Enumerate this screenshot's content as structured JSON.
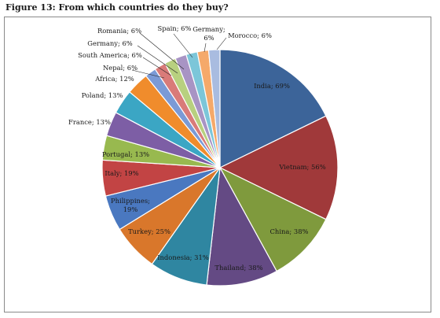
{
  "figure_title": "Figure 13:  From which countries do they buy?",
  "chart_data": {
    "type": "pie",
    "title": "",
    "slices": [
      {
        "label": "India",
        "value": 69,
        "color": "#3c6499"
      },
      {
        "label": "Vietnam",
        "value": 56,
        "color": "#a0393a"
      },
      {
        "label": "China",
        "value": 38,
        "color": "#7f9a3d"
      },
      {
        "label": "Thailand",
        "value": 38,
        "color": "#644a84"
      },
      {
        "label": "Indonesia",
        "value": 31,
        "color": "#2f86a1"
      },
      {
        "label": "Turkey",
        "value": 25,
        "color": "#d9772b"
      },
      {
        "label": "Philippines",
        "value": 19,
        "color": "#4a78c0"
      },
      {
        "label": "Italy",
        "value": 19,
        "color": "#c24444"
      },
      {
        "label": "Portugal",
        "value": 13,
        "color": "#98b94f"
      },
      {
        "label": "France",
        "value": 13,
        "color": "#7d5ea5"
      },
      {
        "label": "Poland",
        "value": 13,
        "color": "#3ba6c4"
      },
      {
        "label": "Africa",
        "value": 12,
        "color": "#f08c2c"
      },
      {
        "label": "Nepal",
        "value": 6,
        "color": "#7b9ad6"
      },
      {
        "label": "South America",
        "value": 6,
        "color": "#d97b79"
      },
      {
        "label": "Germany",
        "value": 6,
        "color": "#b8d07f"
      },
      {
        "label": "Romania",
        "value": 6,
        "color": "#a894c4"
      },
      {
        "label": "Spain",
        "value": 6,
        "color": "#7cc6d9"
      },
      {
        "label": "Germany",
        "value": 6,
        "color": "#f5a96a"
      },
      {
        "label": "Morocco",
        "value": 6,
        "color": "#a9bce0"
      }
    ]
  }
}
